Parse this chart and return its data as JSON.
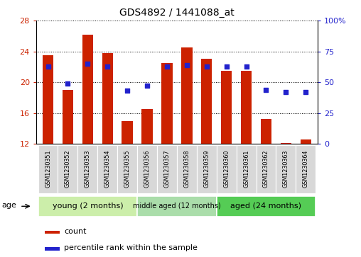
{
  "title": "GDS4892 / 1441088_at",
  "samples": [
    "GSM1230351",
    "GSM1230352",
    "GSM1230353",
    "GSM1230354",
    "GSM1230355",
    "GSM1230356",
    "GSM1230357",
    "GSM1230358",
    "GSM1230359",
    "GSM1230360",
    "GSM1230361",
    "GSM1230362",
    "GSM1230363",
    "GSM1230364"
  ],
  "counts": [
    23.5,
    19.0,
    26.2,
    23.8,
    15.0,
    16.5,
    22.5,
    24.5,
    23.0,
    21.5,
    21.5,
    15.2,
    12.1,
    12.6
  ],
  "percentile_ranks": [
    63,
    49,
    65,
    63,
    43,
    47,
    63,
    64,
    63,
    63,
    63,
    44,
    42,
    42
  ],
  "y_min": 12,
  "y_max": 28,
  "y_ticks": [
    12,
    16,
    20,
    24,
    28
  ],
  "bar_color": "#cc2200",
  "dot_color": "#2222cc",
  "bar_bottom": 12,
  "groups": [
    {
      "label": "young (2 months)",
      "start": 0,
      "end": 5,
      "color": "#bbeeaa"
    },
    {
      "label": "middle aged (12 months)",
      "start": 5,
      "end": 9,
      "color": "#99dd88"
    },
    {
      "label": "aged (24 months)",
      "start": 9,
      "end": 14,
      "color": "#44cc44"
    }
  ],
  "right_y_ticks": [
    0,
    25,
    50,
    75,
    100
  ],
  "right_y_labels": [
    "0",
    "25",
    "50",
    "75",
    "100%"
  ],
  "age_label": "age",
  "legend_count": "count",
  "legend_percentile": "percentile rank within the sample",
  "bg_color": "#ffffff"
}
